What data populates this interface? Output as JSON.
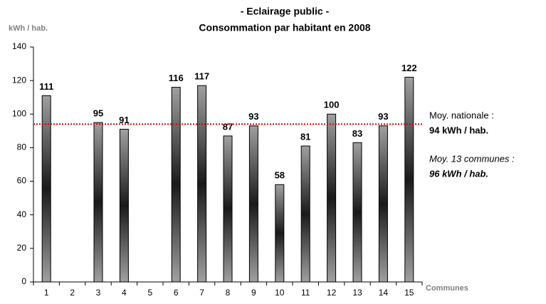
{
  "chart_data": {
    "type": "bar",
    "title": "- Eclairage public -",
    "subtitle": "Consommation par habitant en 2008",
    "y_label": "kWh / hab.",
    "x_label": "Communes",
    "categories": [
      "1",
      "2",
      "3",
      "4",
      "5",
      "6",
      "7",
      "8",
      "9",
      "10",
      "11",
      "12",
      "13",
      "14",
      "15"
    ],
    "values": [
      111,
      null,
      95,
      91,
      null,
      116,
      117,
      87,
      93,
      58,
      81,
      100,
      83,
      93,
      122
    ],
    "color": "#808080",
    "ylim": [
      0,
      140
    ],
    "yticks": [
      0,
      20,
      40,
      60,
      80,
      100,
      120,
      140
    ],
    "grid": false,
    "reference_line": {
      "value": 94,
      "color": "#e00000"
    },
    "annotations": [
      "Moy. nationale :",
      "94 kWh / hab.",
      "Moy. 13 communes :",
      "96 kWh / hab."
    ]
  }
}
